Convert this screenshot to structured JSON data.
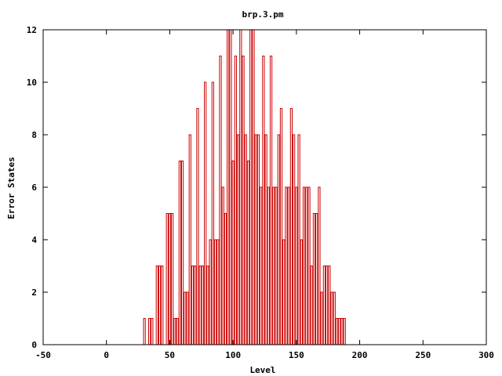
{
  "chart_data": {
    "type": "bar",
    "title": "brp.3.pm",
    "xlabel": "Level",
    "ylabel": "Error States",
    "xlim": [
      -50,
      300
    ],
    "ylim": [
      0,
      12
    ],
    "x_ticks": [
      -50,
      0,
      50,
      100,
      150,
      200,
      250,
      300
    ],
    "y_ticks": [
      0,
      2,
      4,
      6,
      8,
      10,
      12
    ],
    "grid": false,
    "legend": "none",
    "bar_color": "#cc0000",
    "x": [
      30,
      32,
      34,
      36,
      38,
      40,
      42,
      44,
      46,
      48,
      50,
      52,
      54,
      56,
      58,
      60,
      62,
      64,
      66,
      68,
      70,
      72,
      74,
      76,
      78,
      80,
      82,
      84,
      86,
      88,
      90,
      92,
      94,
      96,
      98,
      100,
      102,
      104,
      106,
      108,
      110,
      112,
      114,
      116,
      118,
      120,
      122,
      124,
      126,
      128,
      130,
      132,
      134,
      136,
      138,
      140,
      142,
      144,
      146,
      148,
      150,
      152,
      154,
      156,
      158,
      160,
      162,
      164,
      166,
      168,
      170,
      172,
      174,
      176,
      178,
      180,
      182,
      184,
      186,
      188
    ],
    "values": [
      1,
      0,
      1,
      1,
      0,
      3,
      3,
      3,
      0,
      5,
      5,
      5,
      1,
      1,
      7,
      7,
      2,
      2,
      8,
      3,
      3,
      9,
      3,
      3,
      10,
      3,
      4,
      10,
      4,
      4,
      11,
      6,
      5,
      12,
      12,
      7,
      11,
      8,
      12,
      11,
      8,
      7,
      12,
      12,
      8,
      8,
      6,
      11,
      8,
      6,
      11,
      6,
      6,
      8,
      9,
      4,
      6,
      6,
      9,
      8,
      6,
      8,
      4,
      6,
      6,
      6,
      3,
      5,
      5,
      6,
      2,
      3,
      3,
      3,
      2,
      2,
      1,
      1,
      1,
      1
    ]
  }
}
